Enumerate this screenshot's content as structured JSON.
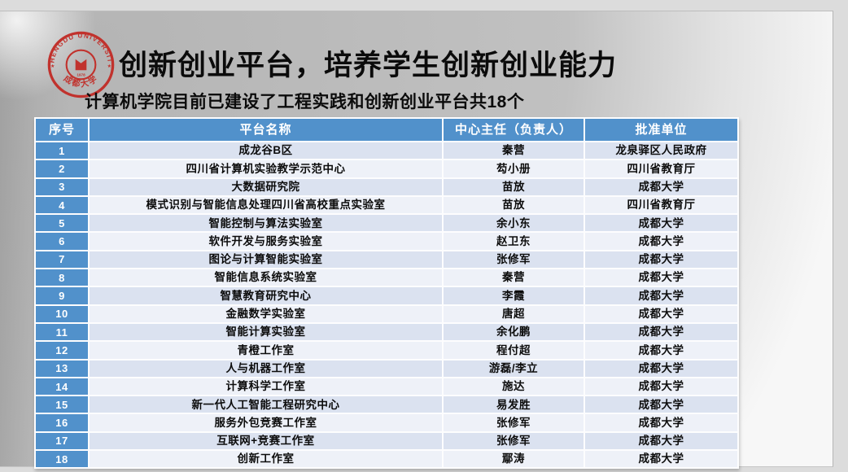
{
  "slide": {
    "title": "创新创业平台，培养学生创新创业能力",
    "subtitle": "计算机学院目前已建设了工程实践和创新创业平台共18个"
  },
  "logo": {
    "arc_text": "CHENGDU UNIVERSITY",
    "cn_text": "成都大学",
    "year": "1978",
    "color": "#c1322d"
  },
  "colors": {
    "header_bg": "#5191cb",
    "row_odd": "#dbe2f0",
    "row_even": "#eef1f8",
    "title_color": "#0b0b0b"
  },
  "table": {
    "columns": [
      "序号",
      "平台名称",
      "中心主任（负责人）",
      "批准单位"
    ],
    "rows": [
      {
        "no": "1",
        "name": "成龙谷B区",
        "director": "秦营",
        "approver": "龙泉驿区人民政府"
      },
      {
        "no": "2",
        "name": "四川省计算机实验教学示范中心",
        "director": "芶小册",
        "approver": "四川省教育厅"
      },
      {
        "no": "3",
        "name": "大数据研究院",
        "director": "苗放",
        "approver": "成都大学"
      },
      {
        "no": "4",
        "name": "模式识别与智能信息处理四川省高校重点实验室",
        "director": "苗放",
        "approver": "四川省教育厅"
      },
      {
        "no": "5",
        "name": "智能控制与算法实验室",
        "director": "余小东",
        "approver": "成都大学"
      },
      {
        "no": "6",
        "name": "软件开发与服务实验室",
        "director": "赵卫东",
        "approver": "成都大学"
      },
      {
        "no": "7",
        "name": "图论与计算智能实验室",
        "director": "张修军",
        "approver": "成都大学"
      },
      {
        "no": "8",
        "name": "智能信息系统实验室",
        "director": "秦营",
        "approver": "成都大学"
      },
      {
        "no": "9",
        "name": "智慧教育研究中心",
        "director": "李霞",
        "approver": "成都大学"
      },
      {
        "no": "10",
        "name": "金融数学实验室",
        "director": "唐超",
        "approver": "成都大学"
      },
      {
        "no": "11",
        "name": "智能计算实验室",
        "director": "余化鹏",
        "approver": "成都大学"
      },
      {
        "no": "12",
        "name": "青橙工作室",
        "director": "程付超",
        "approver": "成都大学"
      },
      {
        "no": "13",
        "name": "人与机器工作室",
        "director": "游磊/李立",
        "approver": "成都大学"
      },
      {
        "no": "14",
        "name": "计算科学工作室",
        "director": "施达",
        "approver": "成都大学"
      },
      {
        "no": "15",
        "name": "新一代人工智能工程研究中心",
        "director": "易发胜",
        "approver": "成都大学"
      },
      {
        "no": "16",
        "name": "服务外包竞赛工作室",
        "director": "张修军",
        "approver": "成都大学"
      },
      {
        "no": "17",
        "name": "互联网+竞赛工作室",
        "director": "张修军",
        "approver": "成都大学"
      },
      {
        "no": "18",
        "name": "创新工作室",
        "director": "鄢涛",
        "approver": "成都大学"
      }
    ]
  }
}
